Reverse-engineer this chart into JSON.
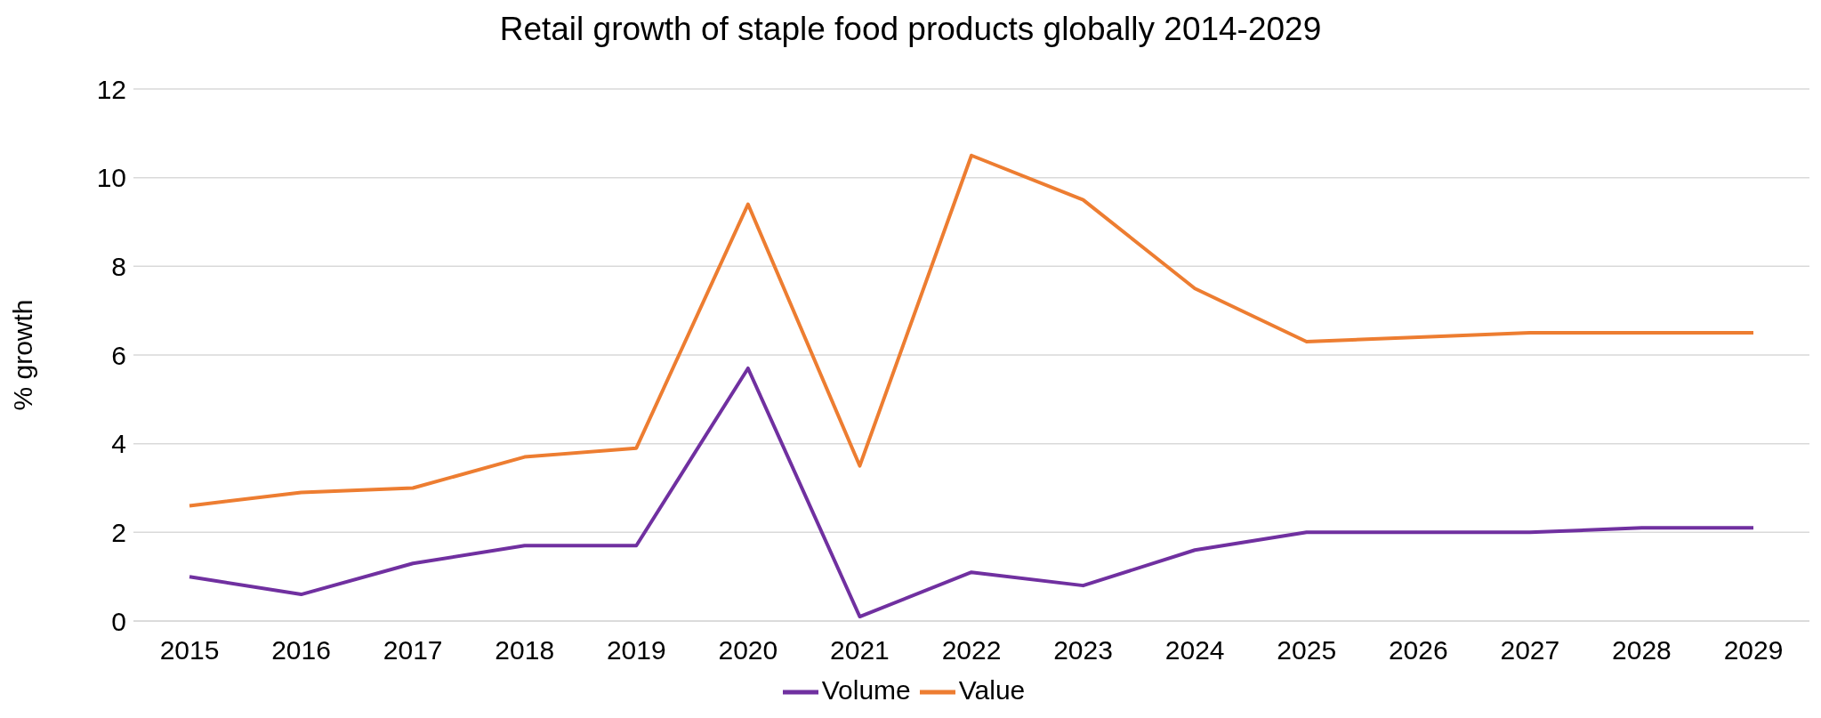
{
  "chart_data": {
    "type": "line",
    "title": "Retail growth of staple food products globally 2014-2029",
    "ylabel": "% growth",
    "categories": [
      "2015",
      "2016",
      "2017",
      "2018",
      "2019",
      "2020",
      "2021",
      "2022",
      "2023",
      "2024",
      "2025",
      "2026",
      "2027",
      "2028",
      "2029"
    ],
    "series": [
      {
        "name": "Volume",
        "color": "#7030a0",
        "values": [
          1.0,
          0.6,
          1.3,
          1.7,
          1.7,
          5.7,
          0.1,
          1.1,
          0.8,
          1.6,
          2.0,
          2.0,
          2.0,
          2.1,
          2.1
        ]
      },
      {
        "name": "Value",
        "color": "#ed7d31",
        "values": [
          2.6,
          2.9,
          3.0,
          3.7,
          3.9,
          9.4,
          3.5,
          10.5,
          9.5,
          7.5,
          6.3,
          6.4,
          6.5,
          6.5,
          6.5
        ]
      }
    ],
    "ylim": [
      0,
      12
    ],
    "yticks": [
      0,
      2,
      4,
      6,
      8,
      10,
      12
    ],
    "grid": "y",
    "legend": "bottom"
  }
}
